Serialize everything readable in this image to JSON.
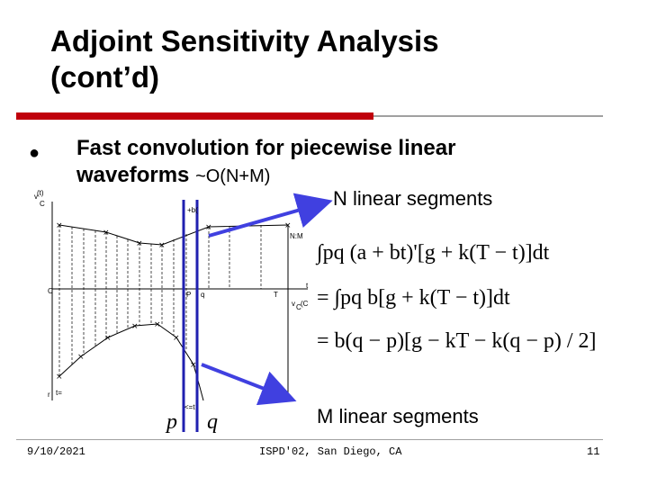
{
  "slide": {
    "title_line1": "Adjoint Sensitivity Analysis",
    "title_line2": "(cont’d)",
    "bullet_marker": "l",
    "bullet_line1": "Fast convolution for piecewise linear",
    "bullet_line2": "waveforms",
    "bullet_complexity": "~O(N+M)",
    "label_n": "N linear segments",
    "label_m": "M linear segments",
    "p_label": "p",
    "q_label": "q"
  },
  "equations": {
    "line1": "∫pq (a + bt)'[g + k(T − t)]dt",
    "line2": "= ∫pq b[g + k(T − t)]dt",
    "line3": "= b(q − p)[g − kT − k(q − p) / 2]"
  },
  "diagram_labels": {
    "vc_top": "v",
    "vc_top_sub": "C",
    "vc_top_arg": "(t)",
    "b_marker": "+b(",
    "nm": "N:M",
    "origin": "C",
    "p_axis": "P",
    "q_axis": "q",
    "t_axis": "T",
    "t_label": "t",
    "vc_bottom": "v",
    "vc_bottom_sub": "C",
    "vc_bottom_arg": "(C",
    "lower_left": "r",
    "lower_left2": "t=",
    "bottom_marker": "<=t"
  },
  "footer": {
    "date": "9/10/2021",
    "venue": "ISPD'02, San Diego, CA",
    "page": "11"
  },
  "colors": {
    "accent_red": "#c0000c",
    "arrow_blue": "#4040e0",
    "cursor_blue": "#2020b0"
  }
}
